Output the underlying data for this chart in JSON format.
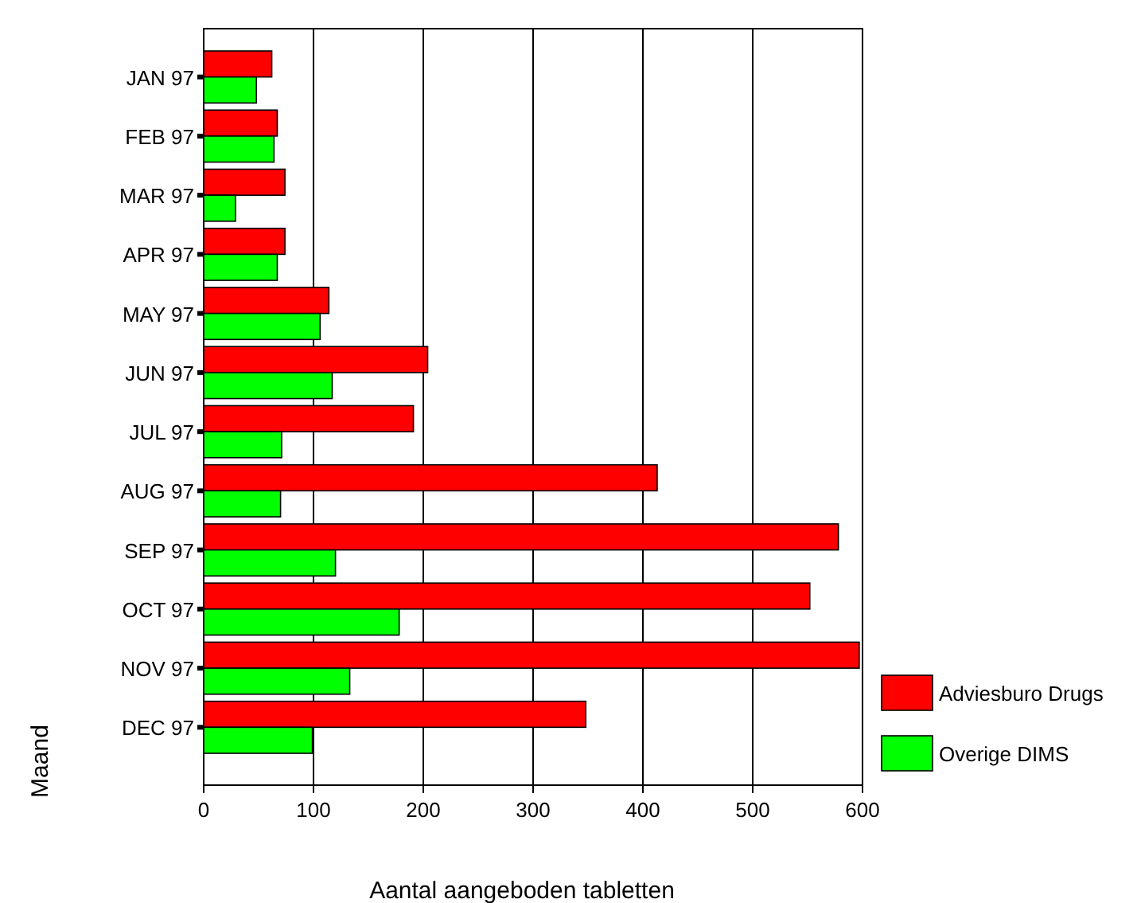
{
  "chart_data": {
    "type": "bar",
    "orientation": "horizontal",
    "xlabel": "Aantal aangeboden tabletten",
    "ylabel": "Maand",
    "categories": [
      "JAN 97",
      "FEB 97",
      "MAR 97",
      "APR 97",
      "MAY 97",
      "JUN 97",
      "JUL 97",
      "AUG 97",
      "SEP 97",
      "OCT 97",
      "NOV 97",
      "DEC 97"
    ],
    "series": [
      {
        "name": "Adviesburo Drugs",
        "color": "#ff0000",
        "values": [
          62,
          67,
          74,
          74,
          114,
          204,
          191,
          413,
          578,
          552,
          597,
          348
        ]
      },
      {
        "name": "Overige DIMS",
        "color": "#00ff00",
        "values": [
          48,
          64,
          29,
          67,
          106,
          117,
          71,
          70,
          120,
          178,
          133,
          99
        ]
      }
    ],
    "xlim": [
      0,
      600
    ],
    "xticks": [
      0,
      100,
      200,
      300,
      400,
      500,
      600
    ],
    "grid": "x",
    "legend": "right"
  }
}
